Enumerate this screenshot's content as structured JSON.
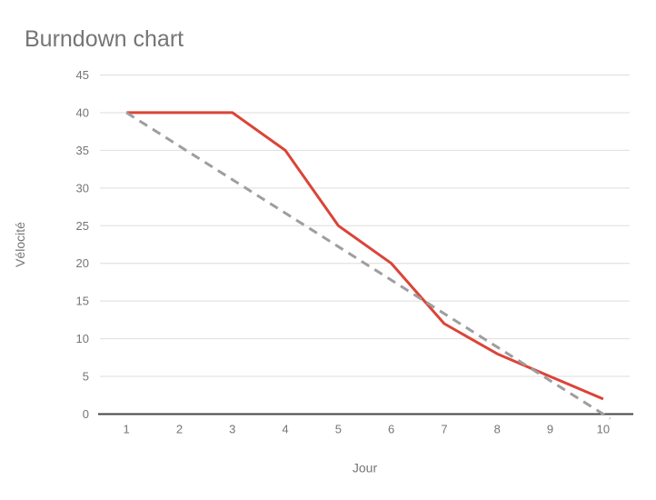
{
  "chart": {
    "title": "Burndown chart"
  },
  "chart_data": {
    "type": "line",
    "title": "Burndown chart",
    "xlabel": "Jour",
    "ylabel": "Vélocité",
    "x": [
      1,
      2,
      3,
      4,
      5,
      6,
      7,
      8,
      9,
      10
    ],
    "xtick_labels": [
      "1",
      "2",
      "3",
      "4",
      "5",
      "6",
      "7",
      "8",
      "9",
      "10"
    ],
    "yticks": [
      0,
      5,
      10,
      15,
      20,
      25,
      30,
      35,
      40,
      45
    ],
    "xlim": [
      0.5,
      10.5
    ],
    "ylim": [
      0,
      45
    ],
    "grid": "horizontal",
    "legend": "none",
    "series": [
      {
        "name": "actual-velocity",
        "style": "solid",
        "color": "#db4437",
        "values": [
          40,
          40,
          40,
          35,
          25,
          20,
          12,
          8,
          5,
          2
        ]
      },
      {
        "name": "ideal-burndown",
        "style": "dashed",
        "color": "#9e9e9e",
        "values": [
          40,
          35.56,
          31.11,
          26.67,
          22.22,
          17.78,
          13.33,
          8.89,
          4.44,
          0
        ]
      }
    ]
  },
  "colors": {
    "background": "#ffffff",
    "title_text": "#757575",
    "tick_text": "#757575",
    "axis_title_text": "#757575",
    "grid": "#dedede",
    "axis": "#444444"
  }
}
